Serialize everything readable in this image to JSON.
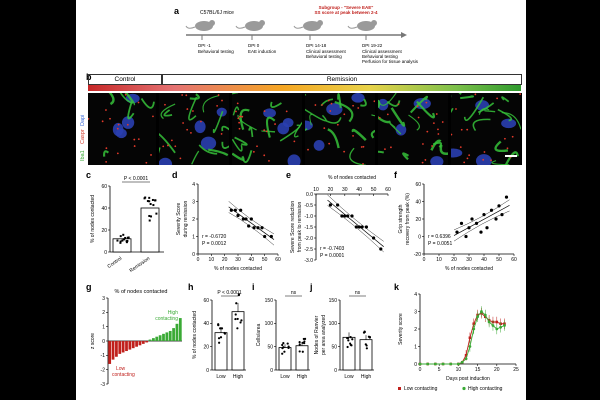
{
  "panel_labels": {
    "a": "a",
    "b": "b",
    "c": "c",
    "d": "d",
    "e": "e",
    "f": "f",
    "g": "g",
    "h": "h",
    "i": "i",
    "j": "j",
    "k": "k"
  },
  "a": {
    "mice": "C57BL/6J mice",
    "subgroup_line1": "Subgroup - \"Severe EAE\"",
    "subgroup_line2": "SS score at peak between 2-4",
    "steps": [
      {
        "day": "DPI -1",
        "lines": [
          "Behavioral testing"
        ]
      },
      {
        "day": "DPI 0",
        "lines": [
          "EAE induction"
        ]
      },
      {
        "day": "DPI 14-18",
        "lines": [
          "Clinical assessment",
          "Behavioral testing"
        ]
      },
      {
        "day": "DPI 19-22",
        "lines": [
          "Clinical assessment",
          "Behavioral testing",
          "Perfusion for tissue analysis"
        ]
      }
    ]
  },
  "b": {
    "control": "Control",
    "remission": "Remission",
    "stain_iba1": "Iba1",
    "stain_caspr": "Caspr",
    "stain_dapi": "Dapi"
  },
  "c": {
    "ylabel": "% of nodes contacted",
    "categories": [
      "Control",
      "Remission"
    ],
    "p": "P < 0.0001",
    "yticks": [
      "0",
      "20",
      "40",
      "60"
    ]
  },
  "d": {
    "ylabel_1": "Severity Score",
    "ylabel_2": "during remission",
    "xlabel": "% of nodes contacted",
    "r": "r = -0.6720",
    "p": "P = 0.0012",
    "xticks": [
      "0",
      "10",
      "20",
      "30",
      "40",
      "50",
      "60"
    ],
    "yticks": [
      "0",
      "1",
      "2",
      "3",
      "4"
    ]
  },
  "e": {
    "top_label": "% of nodes contacted",
    "ylabel_1": "Severe Score reduction",
    "ylabel_2": "from peak to remission",
    "r": "r = -0.7403",
    "p": "P = 0.0001",
    "xticks": [
      "10",
      "20",
      "30",
      "40",
      "50",
      "60"
    ],
    "yticks": [
      "0.0",
      "-0.5",
      "-1.0",
      "-1.5",
      "-2.0",
      "-2.5",
      "-3.0"
    ]
  },
  "f": {
    "ylabel_1": "Grip strength",
    "ylabel_2": "recovery from peak (%)",
    "xlabel": "% of nodes contacted",
    "r": "r = 0.6396",
    "p": "P = 0.0051",
    "xticks": [
      "0",
      "10",
      "20",
      "30",
      "40",
      "50",
      "60"
    ],
    "yticks": [
      "-20",
      "0",
      "20",
      "40",
      "60"
    ]
  },
  "g": {
    "title": "% of nodes contacted",
    "ylabel": "z score",
    "high": "High",
    "high2": "contacting",
    "low": "Low",
    "low2": "contacting",
    "yticks": [
      "3",
      "2",
      "1",
      "0",
      "-1",
      "-2",
      "-3"
    ]
  },
  "h": {
    "ylabel": "% of nodes contacted",
    "categories": [
      "Low",
      "High"
    ],
    "p": "P < 0.0001",
    "yticks": [
      "0",
      "20",
      "40",
      "60"
    ]
  },
  "i": {
    "ylabel": "Cells/area",
    "categories": [
      "Low",
      "High"
    ],
    "ns": "ns",
    "yticks": [
      "0",
      "50",
      "100",
      "150"
    ]
  },
  "j": {
    "ylabel_1": "Nodes of Ranvier",
    "ylabel_2": "per area analyzed",
    "categories": [
      "Low",
      "High"
    ],
    "ns": "ns",
    "yticks": [
      "0",
      "50",
      "100",
      "150"
    ]
  },
  "k": {
    "ylabel": "Severity score",
    "xlabel": "Days post induction",
    "xticks": [
      "0",
      "5",
      "10",
      "15",
      "20",
      "25"
    ],
    "yticks": [
      "0",
      "1",
      "2",
      "3",
      "4"
    ],
    "legend_low": "Low contacting",
    "legend_high": "High contacting"
  },
  "colors": {
    "red": "#c0201c",
    "green": "#3aaa35",
    "gray": "#555555"
  },
  "chart_data": [
    {
      "type": "bar",
      "panel": "c",
      "categories": [
        "Control",
        "Remission"
      ],
      "values": [
        12,
        40
      ],
      "ylim": [
        0,
        60
      ],
      "ylabel": "% of nodes contacted"
    },
    {
      "type": "scatter",
      "panel": "d",
      "x": [
        25,
        28,
        30,
        32,
        34,
        36,
        38,
        40,
        42,
        45,
        48,
        50,
        55
      ],
      "y": [
        2.5,
        2.5,
        2.2,
        2.5,
        2.0,
        2.0,
        1.6,
        2.0,
        1.5,
        1.5,
        1.5,
        1.0,
        1.0
      ],
      "xlim": [
        0,
        60
      ],
      "ylim": [
        0,
        4
      ],
      "xlabel": "% of nodes contacted"
    },
    {
      "type": "scatter",
      "panel": "e",
      "x": [
        20,
        25,
        28,
        30,
        32,
        35,
        38,
        40,
        42,
        45,
        50,
        55
      ],
      "y": [
        -0.5,
        -0.5,
        -1.0,
        -1.0,
        -1.0,
        -1.0,
        -1.5,
        -1.5,
        -1.5,
        -1.5,
        -2.0,
        -2.5
      ],
      "xlim": [
        10,
        60
      ],
      "ylim": [
        -3,
        0
      ]
    },
    {
      "type": "scatter",
      "panel": "f",
      "x": [
        22,
        25,
        28,
        30,
        32,
        35,
        38,
        40,
        42,
        45,
        48,
        50,
        52,
        55
      ],
      "y": [
        5,
        15,
        0,
        10,
        20,
        15,
        5,
        25,
        10,
        30,
        20,
        35,
        25,
        45
      ],
      "xlim": [
        0,
        60
      ],
      "ylim": [
        -20,
        60
      ],
      "xlabel": "% of nodes contacted"
    },
    {
      "type": "bar",
      "panel": "g",
      "values": [
        -1.6,
        -1.3,
        -1.1,
        -0.9,
        -0.8,
        -0.7,
        -0.6,
        -0.5,
        -0.4,
        -0.3,
        -0.2,
        -0.1,
        0.1,
        0.2,
        0.3,
        0.4,
        0.5,
        0.6,
        0.7,
        0.9,
        1.2,
        1.6
      ],
      "ylim": [
        -3,
        3
      ]
    },
    {
      "type": "bar",
      "panel": "h",
      "categories": [
        "Low",
        "High"
      ],
      "values": [
        32,
        50
      ],
      "ylim": [
        0,
        60
      ]
    },
    {
      "type": "bar",
      "panel": "i",
      "categories": [
        "Low",
        "High"
      ],
      "values": [
        48,
        52
      ],
      "ylim": [
        0,
        150
      ]
    },
    {
      "type": "bar",
      "panel": "j",
      "categories": [
        "Low",
        "High"
      ],
      "values": [
        70,
        65
      ],
      "ylim": [
        0,
        150
      ]
    },
    {
      "type": "line",
      "panel": "k",
      "x": [
        0,
        2,
        4,
        6,
        8,
        10,
        11,
        12,
        13,
        14,
        15,
        16,
        17,
        18,
        19,
        20,
        21,
        22
      ],
      "series": [
        {
          "name": "Low contacting",
          "values": [
            0,
            0,
            0,
            0,
            0,
            0,
            0.1,
            0.5,
            1.5,
            2.3,
            2.8,
            2.9,
            2.7,
            2.5,
            2.4,
            2.4,
            2.3,
            2.3
          ]
        },
        {
          "name": "High contacting",
          "values": [
            0,
            0,
            0,
            0,
            0,
            0,
            0.1,
            0.3,
            1.0,
            2.0,
            2.7,
            3.0,
            2.8,
            2.4,
            2.2,
            2.0,
            2.1,
            2.2
          ]
        }
      ],
      "xlim": [
        0,
        25
      ],
      "ylim": [
        0,
        4
      ],
      "xlabel": "Days post induction",
      "ylabel": "Severity score"
    }
  ]
}
